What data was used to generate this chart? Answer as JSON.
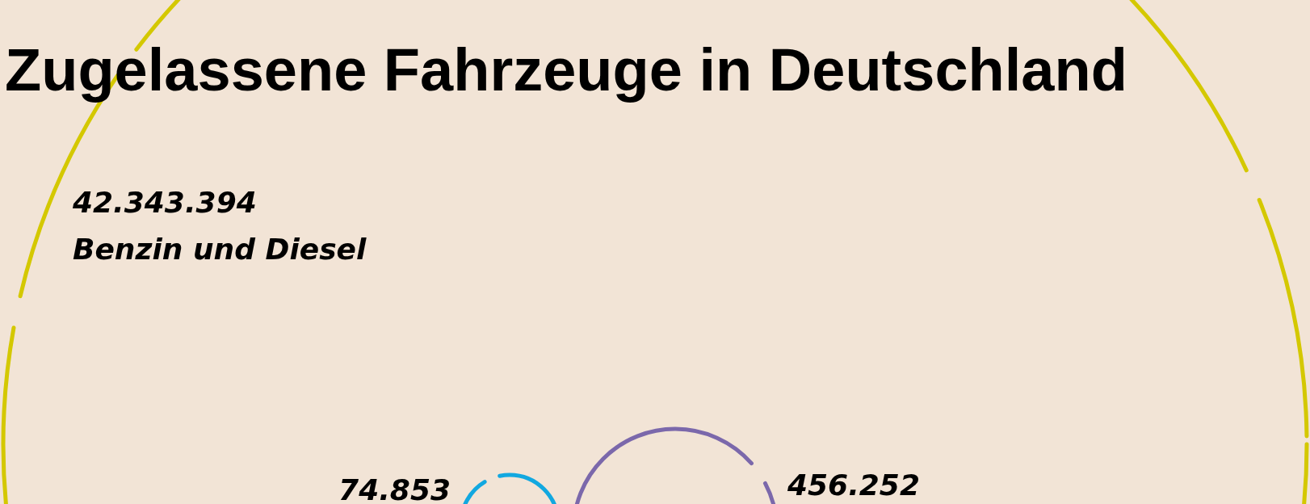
{
  "chart_data": {
    "type": "other",
    "title": "Zugelassene Fahrzeuge in Deutschland",
    "categories": [
      "Benzin und Diesel",
      null,
      null
    ],
    "values": [
      42343394,
      74853,
      456252
    ],
    "value_labels": [
      "42.343.394",
      "74.853",
      "456.252"
    ],
    "colors": [
      "#d4c800",
      "#12a8e0",
      "#7b68ab"
    ]
  }
}
